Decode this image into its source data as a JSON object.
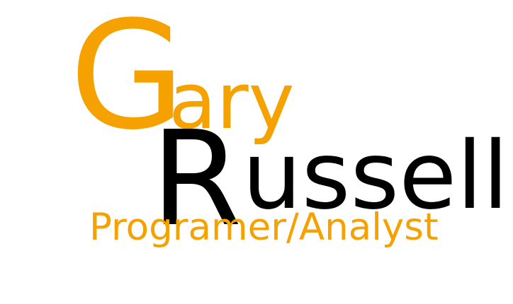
{
  "logo": {
    "first_name_initial": "G",
    "first_name_rest": "ary",
    "last_name_initial": "R",
    "last_name_rest": "ussell",
    "title": "Programer/Analyst"
  },
  "colors": {
    "accent": "#f5a100",
    "text": "#000000",
    "background": "#ffffff"
  }
}
